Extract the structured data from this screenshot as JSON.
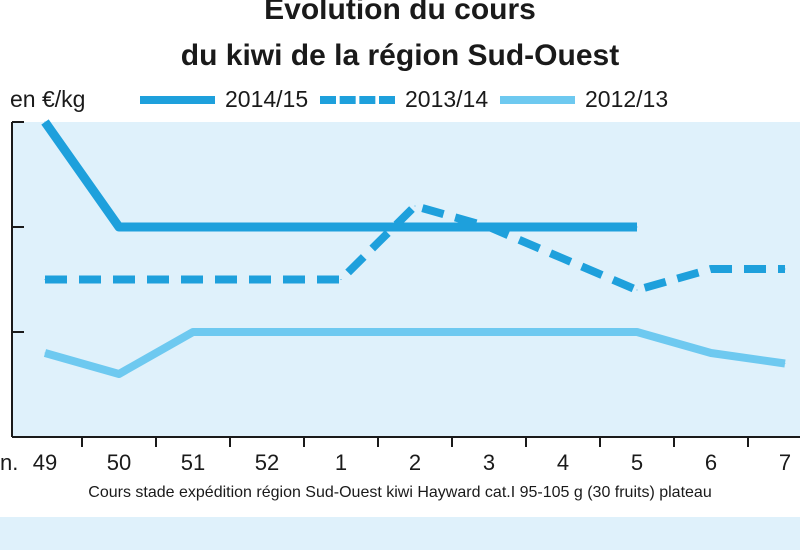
{
  "chart_data": {
    "type": "line",
    "title_line1": "Evolution du cours",
    "title_line2": "du kiwi de la région Sud-Ouest",
    "ylabel": "en €/kg",
    "x_leading_label": "n.",
    "categories": [
      "49",
      "50",
      "51",
      "52",
      "1",
      "2",
      "3",
      "4",
      "5",
      "6",
      "7"
    ],
    "ylim": [
      0.5,
      2.0
    ],
    "y_ticks": [
      0.5,
      1.0,
      1.5,
      2.0
    ],
    "grid": false,
    "legend_position": "top",
    "series": [
      {
        "name": "2014/15",
        "style": "solid-thick",
        "color": "#1ea0dc",
        "values": [
          2.0,
          1.5,
          1.5,
          1.5,
          1.5,
          1.5,
          1.5,
          1.5,
          1.5,
          null,
          null
        ]
      },
      {
        "name": "2013/14",
        "style": "dashed",
        "color": "#1ea0dc",
        "values": [
          1.25,
          1.25,
          1.25,
          1.25,
          1.25,
          1.6,
          1.5,
          1.35,
          1.2,
          1.3,
          1.3
        ]
      },
      {
        "name": "2012/13",
        "style": "solid",
        "color": "#6ec9f0",
        "values": [
          0.9,
          0.8,
          1.0,
          1.0,
          1.0,
          1.0,
          1.0,
          1.0,
          1.0,
          0.9,
          0.85
        ]
      }
    ],
    "caption": "Cours stade expédition région Sud-Ouest kiwi Hayward cat.I 95-105 g (30 fruits) plateau"
  }
}
